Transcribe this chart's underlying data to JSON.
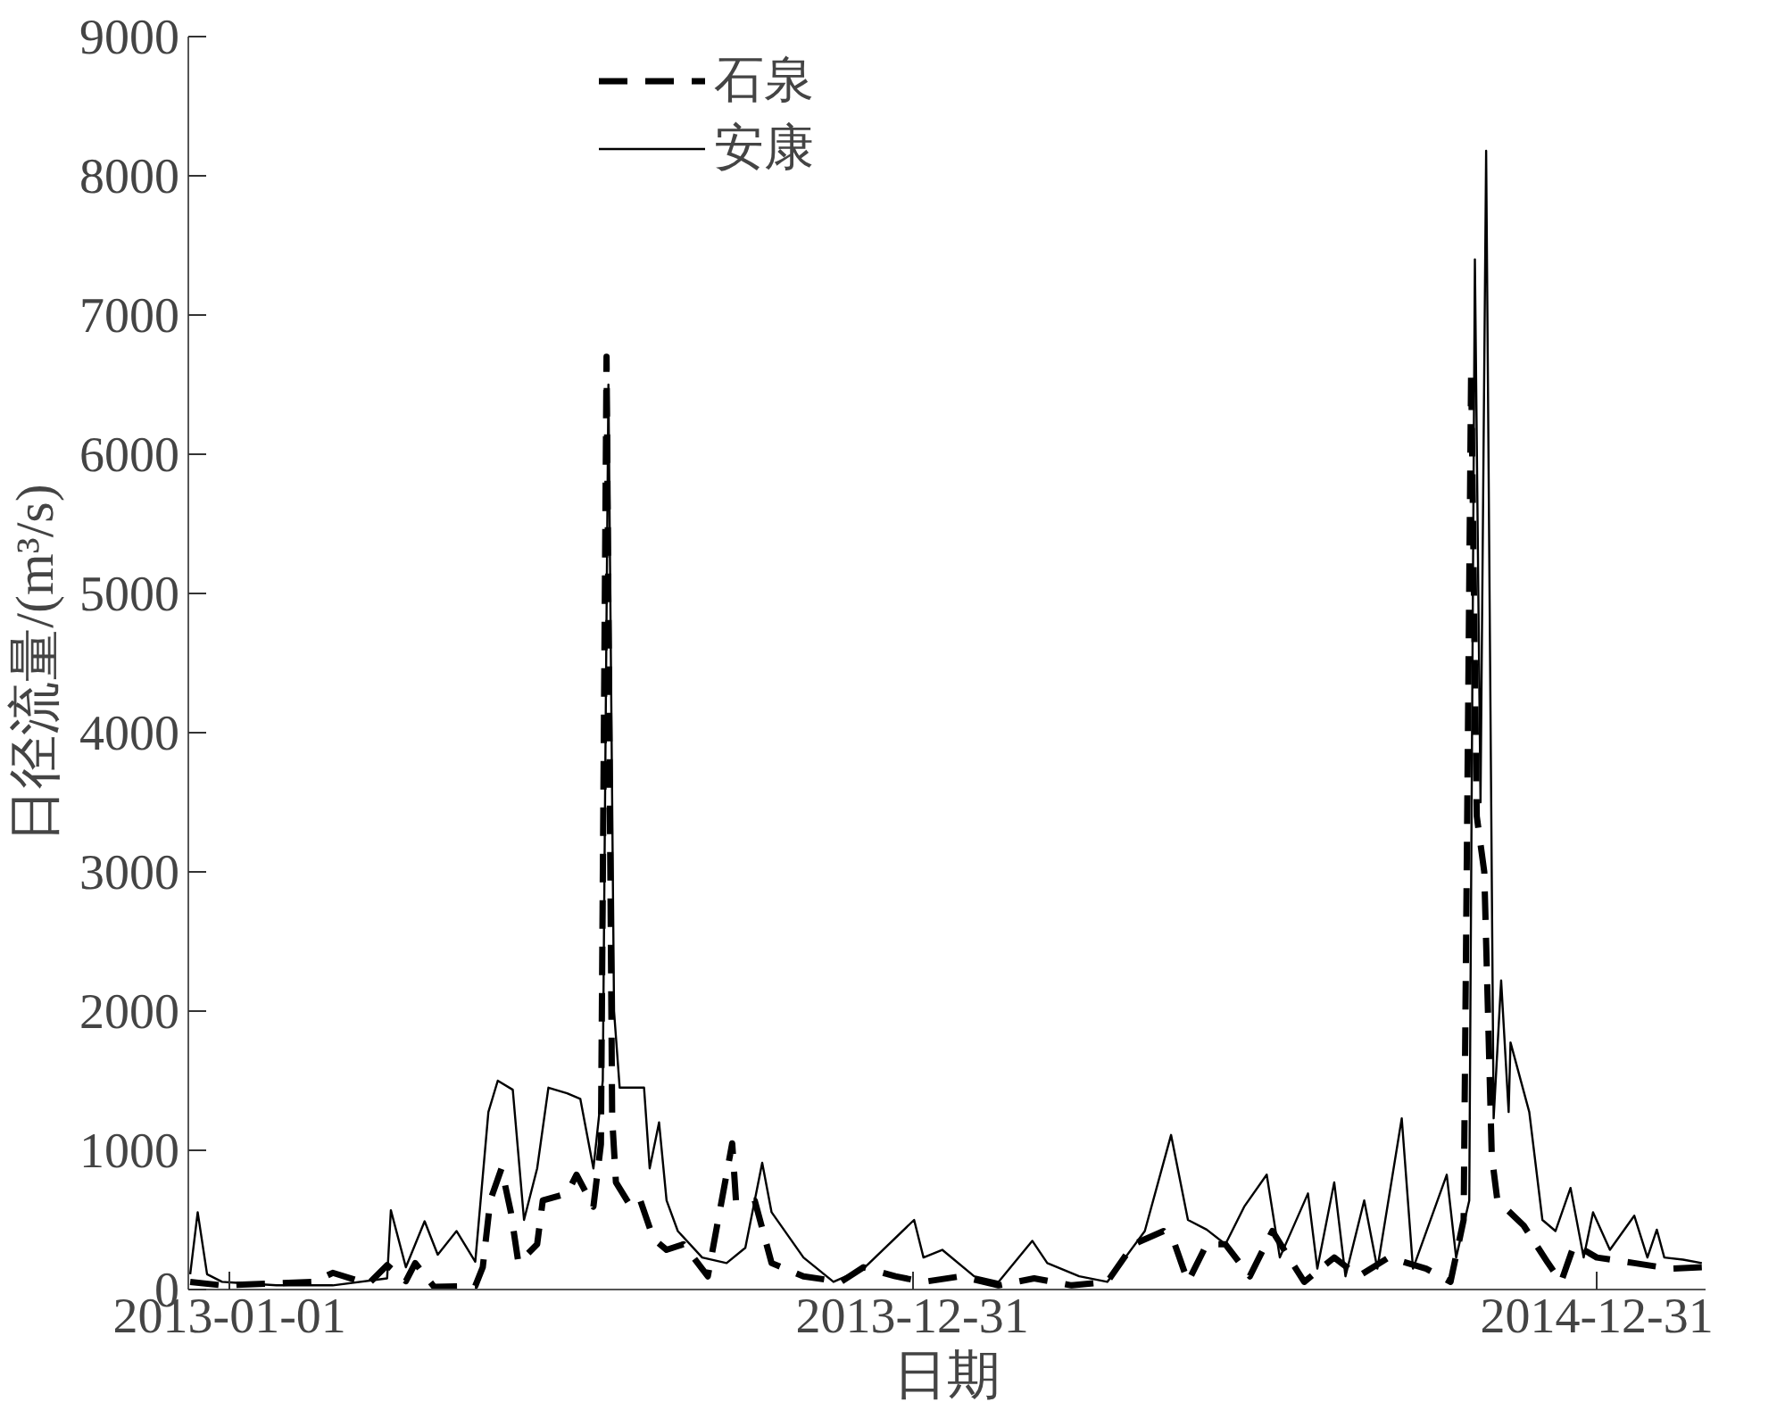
{
  "chart_data": {
    "type": "line",
    "xlabel": "日期",
    "ylabel": "日径流量/(m³/s)",
    "xlim": [
      "2012-12-10",
      "2015-02-27"
    ],
    "xticks": [
      "2013-01-01",
      "2013-12-31",
      "2014-12-31"
    ],
    "ylim": [
      0,
      9000
    ],
    "yticks": [
      0,
      1000,
      2000,
      3000,
      4000,
      5000,
      6000,
      7000,
      8000,
      9000
    ],
    "grid": false,
    "legend": "top",
    "marker": "none",
    "series": [
      {
        "name": "石泉",
        "color": "#000000",
        "line_style": "dashed",
        "x": [
          "2012-12-11",
          "2012-12-28",
          "2013-02-15",
          "2013-02-25",
          "2013-03-16",
          "2013-03-26",
          "2013-04-05",
          "2013-04-10",
          "2013-04-20",
          "2013-05-12",
          "2013-05-16",
          "2013-05-20",
          "2013-05-26",
          "2013-05-31",
          "2013-06-04",
          "2013-06-14",
          "2013-06-17",
          "2013-06-30",
          "2013-07-05",
          "2013-07-14",
          "2013-07-18",
          "2013-07-21",
          "2013-07-24",
          "2013-07-26",
          "2013-08-03",
          "2013-08-08",
          "2013-08-15",
          "2013-08-22",
          "2013-08-31",
          "2013-09-13",
          "2013-09-26",
          "2013-09-28",
          "2013-10-08",
          "2013-10-17",
          "2013-11-03",
          "2013-11-23",
          "2013-12-05",
          "2013-12-22",
          "2014-01-06",
          "2014-01-26",
          "2014-02-15",
          "2014-03-06",
          "2014-03-26",
          "2014-04-14",
          "2014-04-28",
          "2014-05-14",
          "2014-05-20",
          "2014-05-27",
          "2014-06-06",
          "2014-06-16",
          "2014-06-29",
          "2014-07-11",
          "2014-07-28",
          "2014-08-13",
          "2014-08-26",
          "2014-09-11",
          "2014-10-01",
          "2014-10-14",
          "2014-10-21",
          "2014-10-25",
          "2014-10-28",
          "2014-11-01",
          "2014-11-05",
          "2014-11-08",
          "2014-11-22",
          "2014-12-05",
          "2014-12-12",
          "2014-12-19",
          "2014-12-31",
          "2015-01-20",
          "2015-02-08",
          "2015-02-25"
        ],
        "values": [
          55,
          30,
          55,
          120,
          40,
          175,
          60,
          190,
          20,
          25,
          160,
          640,
          870,
          555,
          190,
          325,
          640,
          690,
          825,
          595,
          1045,
          6700,
          1230,
          770,
          595,
          640,
          365,
          285,
          325,
          95,
          1050,
          640,
          640,
          190,
          95,
          55,
          160,
          95,
          55,
          95,
          30,
          80,
          30,
          55,
          325,
          420,
          325,
          55,
          325,
          325,
          95,
          420,
          55,
          230,
          95,
          230,
          150,
          55,
          500,
          6600,
          3400,
          3000,
          960,
          640,
          460,
          190,
          55,
          325,
          230,
          190,
          150,
          160
        ]
      },
      {
        "name": "安康",
        "color": "#000000",
        "line_style": "solid",
        "x": [
          "2012-12-11",
          "2012-12-15",
          "2012-12-20",
          "2012-12-28",
          "2013-01-26",
          "2013-02-25",
          "2013-03-26",
          "2013-03-28",
          "2013-04-05",
          "2013-04-15",
          "2013-04-22",
          "2013-05-02",
          "2013-05-12",
          "2013-05-19",
          "2013-05-24",
          "2013-06-01",
          "2013-06-07",
          "2013-06-14",
          "2013-06-20",
          "2013-06-30",
          "2013-07-07",
          "2013-07-14",
          "2013-07-19",
          "2013-07-22",
          "2013-07-25",
          "2013-07-28",
          "2013-08-10",
          "2013-08-13",
          "2013-08-18",
          "2013-08-22",
          "2013-08-28",
          "2013-09-10",
          "2013-09-23",
          "2013-10-03",
          "2013-10-12",
          "2013-10-17",
          "2013-11-03",
          "2013-11-19",
          "2013-12-05",
          "2014-01-01",
          "2014-01-06",
          "2014-01-16",
          "2014-02-02",
          "2014-02-15",
          "2014-03-05",
          "2014-03-13",
          "2014-03-30",
          "2014-04-14",
          "2014-05-04",
          "2014-05-18",
          "2014-05-27",
          "2014-06-06",
          "2014-06-16",
          "2014-06-26",
          "2014-07-08",
          "2014-07-15",
          "2014-07-30",
          "2014-08-04",
          "2014-08-13",
          "2014-08-19",
          "2014-08-29",
          "2014-09-05",
          "2014-09-18",
          "2014-09-24",
          "2014-10-12",
          "2014-10-17",
          "2014-10-24",
          "2014-10-27",
          "2014-10-30",
          "2014-11-02",
          "2014-11-06",
          "2014-11-10",
          "2014-11-14",
          "2014-11-15",
          "2014-11-25",
          "2014-12-02",
          "2014-12-09",
          "2014-12-17",
          "2014-12-24",
          "2014-12-29",
          "2015-01-07",
          "2015-01-20",
          "2015-01-27",
          "2015-02-01",
          "2015-02-05",
          "2015-02-15",
          "2015-02-25"
        ],
        "values": [
          110,
          555,
          110,
          55,
          30,
          30,
          80,
          570,
          160,
          490,
          250,
          420,
          200,
          1275,
          1500,
          1435,
          500,
          870,
          1450,
          1410,
          1370,
          870,
          1500,
          6500,
          2000,
          1450,
          1450,
          870,
          1200,
          640,
          420,
          230,
          190,
          300,
          910,
          555,
          230,
          55,
          150,
          500,
          230,
          285,
          95,
          55,
          350,
          190,
          95,
          55,
          420,
          1110,
          500,
          430,
          325,
          595,
          825,
          230,
          690,
          150,
          770,
          95,
          640,
          150,
          1230,
          150,
          825,
          230,
          640,
          7400,
          3500,
          8180,
          1230,
          2220,
          1275,
          1775,
          1275,
          500,
          420,
          730,
          230,
          555,
          285,
          530,
          230,
          430,
          230,
          215,
          190
        ]
      }
    ]
  }
}
